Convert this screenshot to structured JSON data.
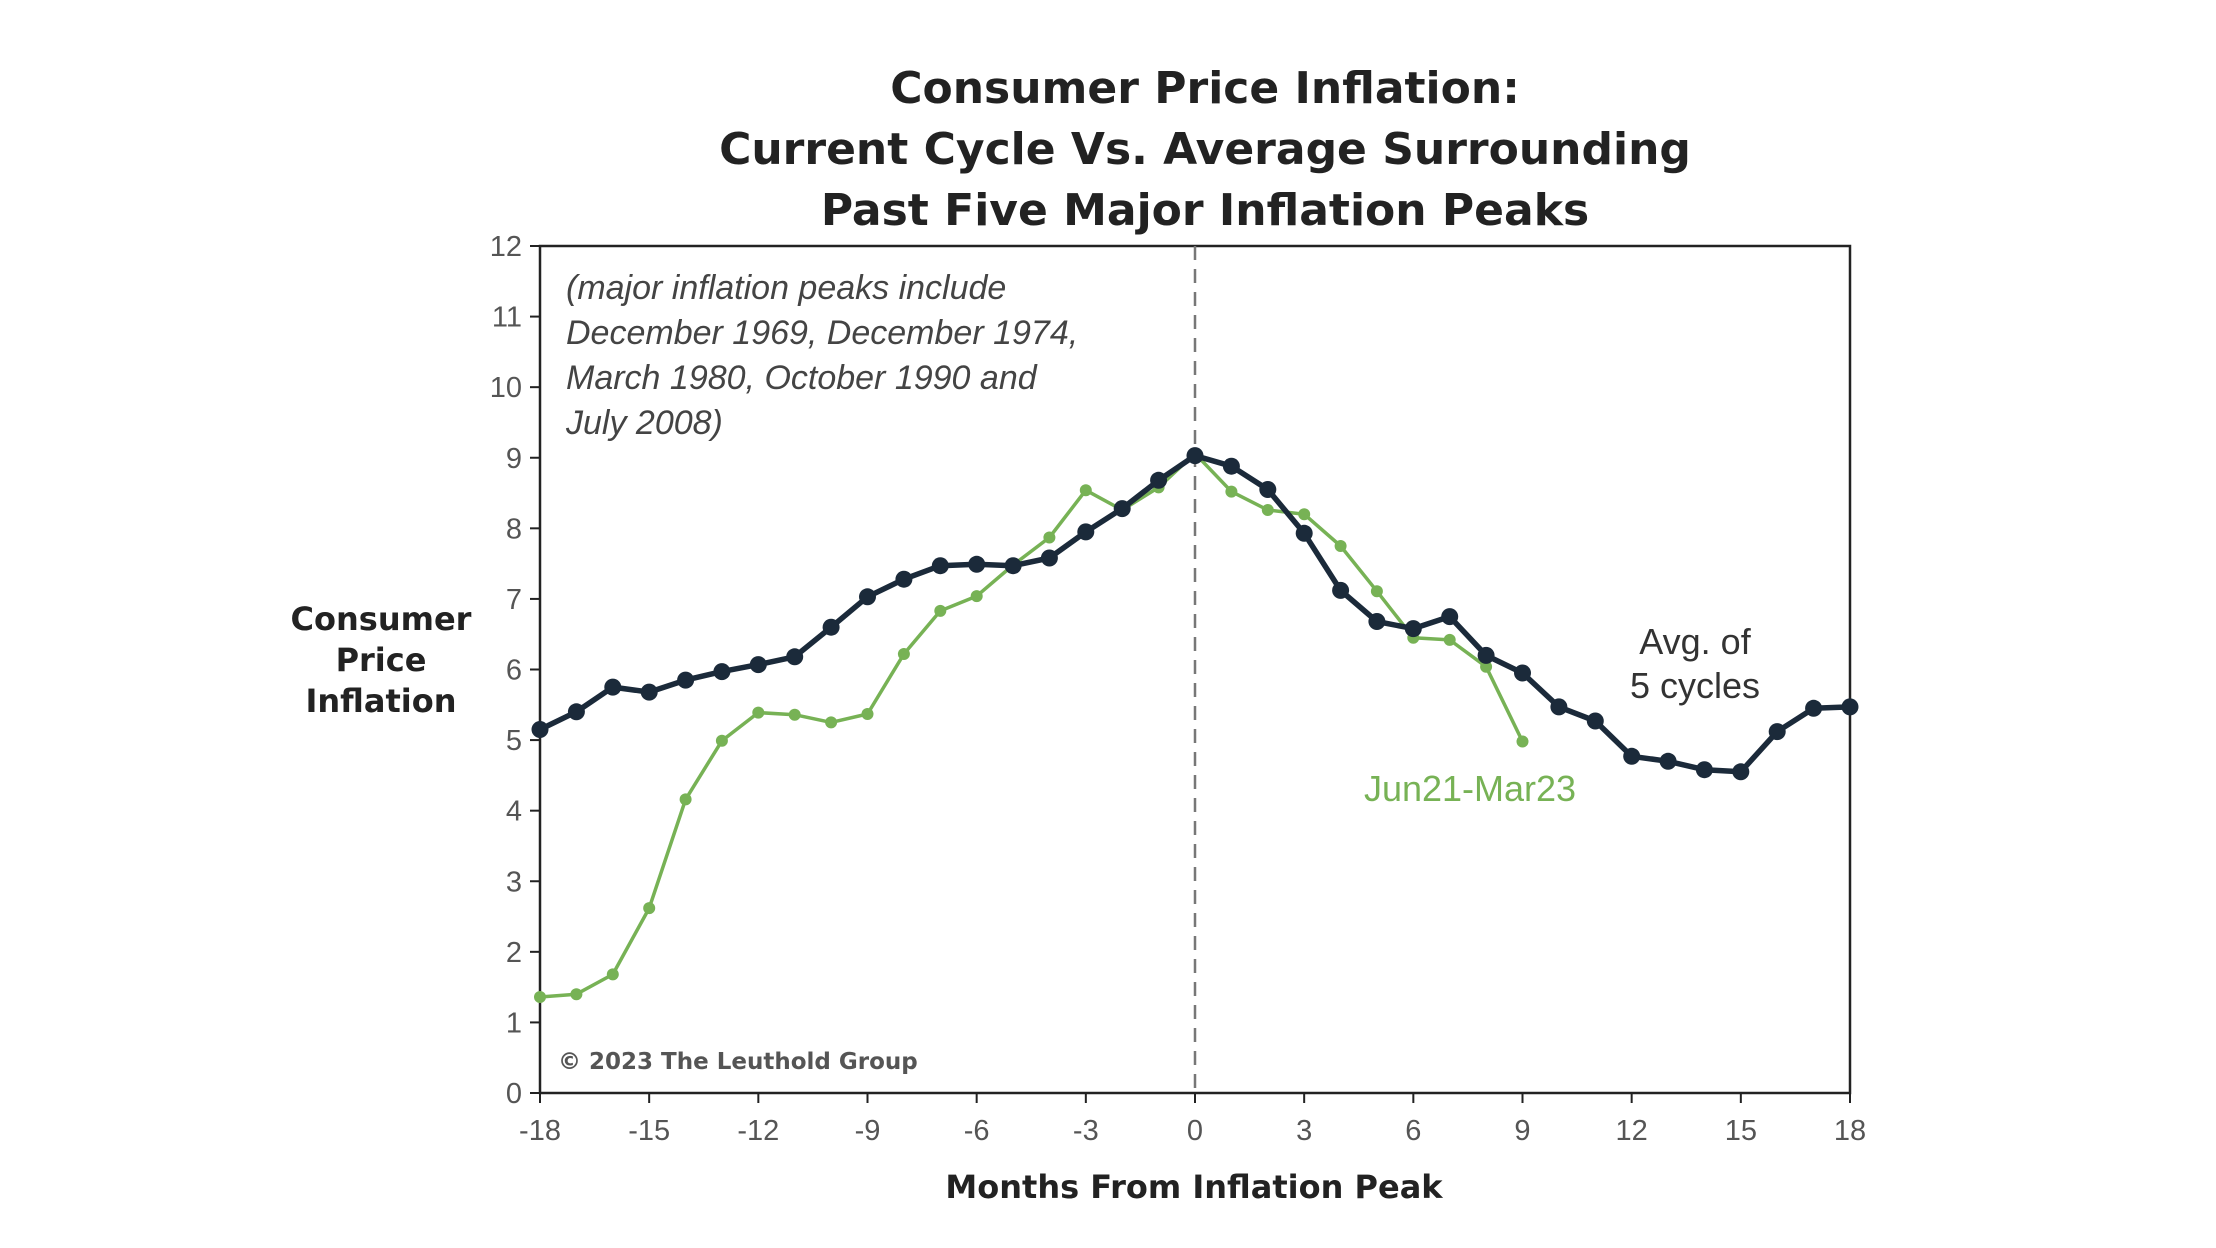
{
  "chart_data": {
    "type": "line",
    "title_lines": [
      "Consumer Price Inflation:",
      "Current Cycle Vs. Average Surrounding",
      "Past Five Major Inflation Peaks"
    ],
    "xlabel": "Months From Inflation Peak",
    "ylabel_lines": [
      "Consumer",
      "Price",
      "Inflation"
    ],
    "xlim": [
      -18,
      18
    ],
    "ylim": [
      0,
      12
    ],
    "x_ticks": [
      -18,
      -15,
      -12,
      -9,
      -6,
      -3,
      0,
      3,
      6,
      9,
      12,
      15,
      18
    ],
    "x_tick_labels": [
      "-18",
      "-15",
      "-12",
      "-9",
      "-6",
      "-3",
      "0",
      "3",
      "6",
      "9",
      "12",
      "15",
      "18"
    ],
    "y_ticks": [
      0,
      1,
      2,
      3,
      4,
      5,
      6,
      7,
      8,
      9,
      10,
      11,
      12
    ],
    "y_tick_labels": [
      "0",
      "1",
      "2",
      "3",
      "4",
      "5",
      "6",
      "7",
      "8",
      "9",
      "10",
      "11",
      "12"
    ],
    "reference_line_x": 0,
    "grid": false,
    "note_lines": [
      "(major inflation peaks include",
      "December 1969, December 1974,",
      "March 1980, October 1990 and",
      "July 2008)"
    ],
    "copyright": "© 2023 The Leuthold Group",
    "series": [
      {
        "name": "Avg. of 5 cycles",
        "label_lines": [
          "Avg. of",
          "5 cycles"
        ],
        "color": "#1b2a3a",
        "x": [
          -18,
          -17,
          -16,
          -15,
          -14,
          -13,
          -12,
          -11,
          -10,
          -9,
          -8,
          -7,
          -6,
          -5,
          -4,
          -3,
          -2,
          -1,
          0,
          1,
          2,
          3,
          4,
          5,
          6,
          7,
          8,
          9,
          10,
          11,
          12,
          13,
          14,
          15,
          16,
          17,
          18
        ],
        "values": [
          5.15,
          5.4,
          5.75,
          5.68,
          5.85,
          5.97,
          6.07,
          6.18,
          6.6,
          7.03,
          7.28,
          7.47,
          7.49,
          7.47,
          7.58,
          7.95,
          8.28,
          8.68,
          9.03,
          8.88,
          8.55,
          7.93,
          7.12,
          6.68,
          6.58,
          6.75,
          6.2,
          5.95,
          5.47,
          5.27,
          4.77,
          4.7,
          4.58,
          4.55,
          5.12,
          5.45,
          5.47
        ]
      },
      {
        "name": "Jun21-Mar23",
        "label_lines": [
          "Jun21-Mar23"
        ],
        "color": "#77b255",
        "x": [
          -18,
          -17,
          -16,
          -15,
          -14,
          -13,
          -12,
          -11,
          -10,
          -9,
          -8,
          -7,
          -6,
          -5,
          -4,
          -3,
          -2,
          -1,
          0,
          1,
          2,
          3,
          4,
          5,
          6,
          7,
          8,
          9
        ],
        "values": [
          1.36,
          1.4,
          1.68,
          2.62,
          4.16,
          4.99,
          5.39,
          5.36,
          5.25,
          5.37,
          6.22,
          6.83,
          7.04,
          7.48,
          7.87,
          8.54,
          8.26,
          8.58,
          9.06,
          8.52,
          8.26,
          8.2,
          7.75,
          7.11,
          6.45,
          6.42,
          6.04,
          4.98
        ]
      }
    ]
  }
}
